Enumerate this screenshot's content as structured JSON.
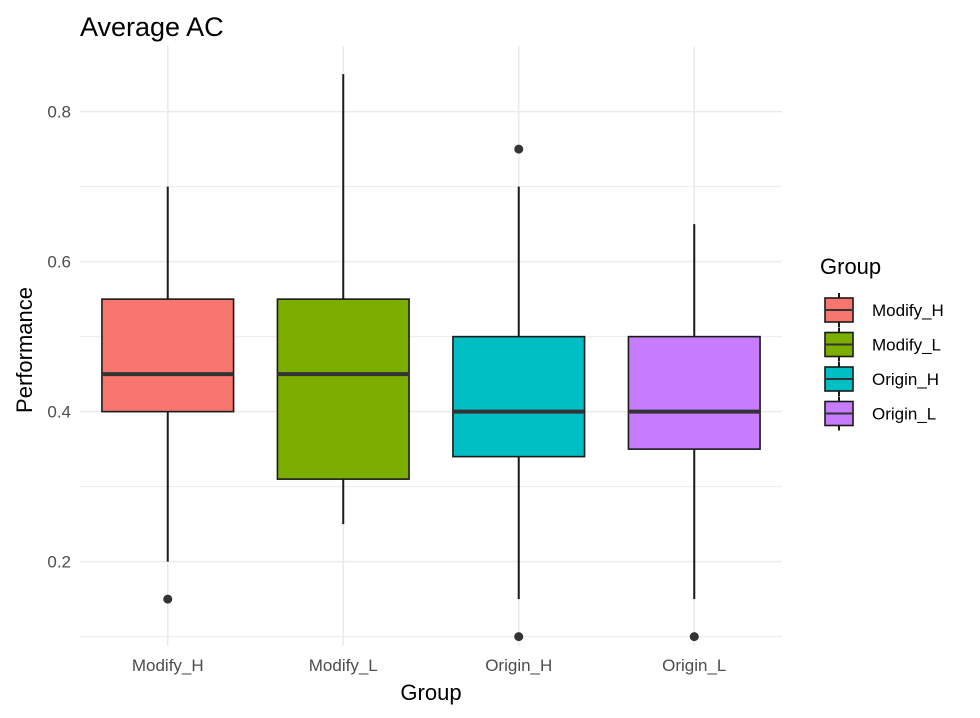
{
  "chart_data": {
    "type": "boxplot",
    "title": "Average AC",
    "xlabel": "Group",
    "ylabel": "Performance",
    "ylim": [
      0.0875,
      0.8875
    ],
    "yticks": [
      0.2,
      0.4,
      0.6,
      0.8
    ],
    "ytick_labels": [
      "0.2",
      "0.4",
      "0.6",
      "0.8"
    ],
    "grid": true,
    "legend": {
      "title": "Group",
      "position": "right"
    },
    "categories": [
      "Modify_H",
      "Modify_L",
      "Origin_H",
      "Origin_L"
    ],
    "series": [
      {
        "name": "Modify_H",
        "color": "#F8766D",
        "whisker_low": 0.2,
        "q1": 0.4,
        "median": 0.45,
        "q3": 0.55,
        "whisker_high": 0.7,
        "outliers": [
          0.15
        ]
      },
      {
        "name": "Modify_L",
        "color": "#7CAE00",
        "whisker_low": 0.25,
        "q1": 0.31,
        "median": 0.45,
        "q3": 0.55,
        "whisker_high": 0.85,
        "outliers": []
      },
      {
        "name": "Origin_H",
        "color": "#00BFC4",
        "whisker_low": 0.15,
        "q1": 0.34,
        "median": 0.4,
        "q3": 0.5,
        "whisker_high": 0.7,
        "outliers": [
          0.75,
          0.1
        ]
      },
      {
        "name": "Origin_L",
        "color": "#C77CFF",
        "whisker_low": 0.15,
        "q1": 0.35,
        "median": 0.4,
        "q3": 0.5,
        "whisker_high": 0.65,
        "outliers": [
          0.1
        ]
      }
    ]
  }
}
